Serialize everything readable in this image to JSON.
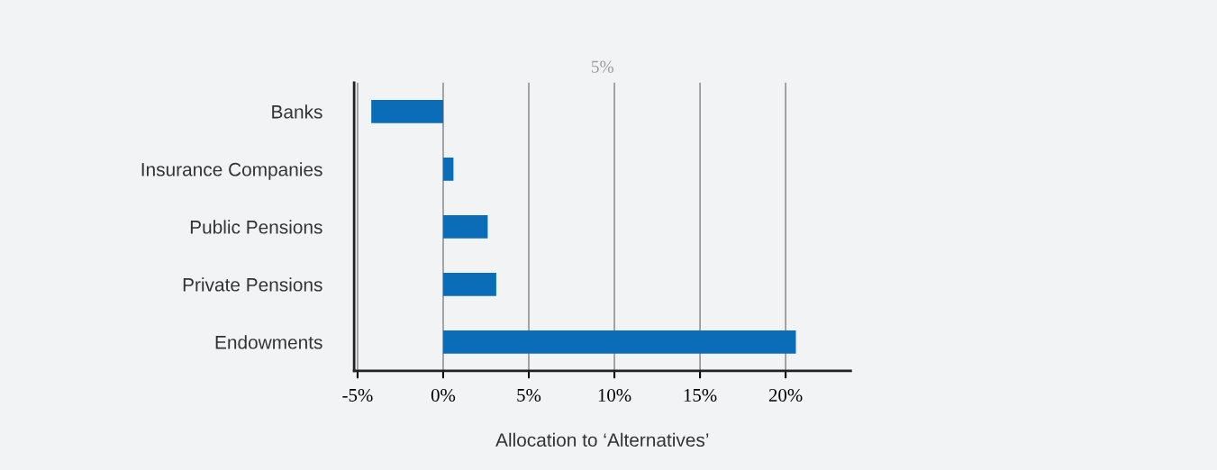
{
  "chart_data": {
    "type": "bar",
    "orientation": "horizontal",
    "categories": [
      "Banks",
      "Insurance Companies",
      "Public Pensions",
      "Private Pensions",
      "Endowments"
    ],
    "values": [
      -4.2,
      0.6,
      2.6,
      3.1,
      20.6
    ],
    "color": "#0b6db7",
    "xlabel": "Allocation to ‘Alternatives’",
    "xlim": [
      -5.2,
      23.8
    ],
    "xticks": [
      {
        "value": -5,
        "label": "-5%"
      },
      {
        "value": 0,
        "label": "0%"
      },
      {
        "value": 5,
        "label": "5%"
      },
      {
        "value": 10,
        "label": "10%"
      },
      {
        "value": 15,
        "label": "15%"
      },
      {
        "value": 20,
        "label": "20%"
      }
    ],
    "grid": "x",
    "annotations": [
      "5%"
    ]
  }
}
